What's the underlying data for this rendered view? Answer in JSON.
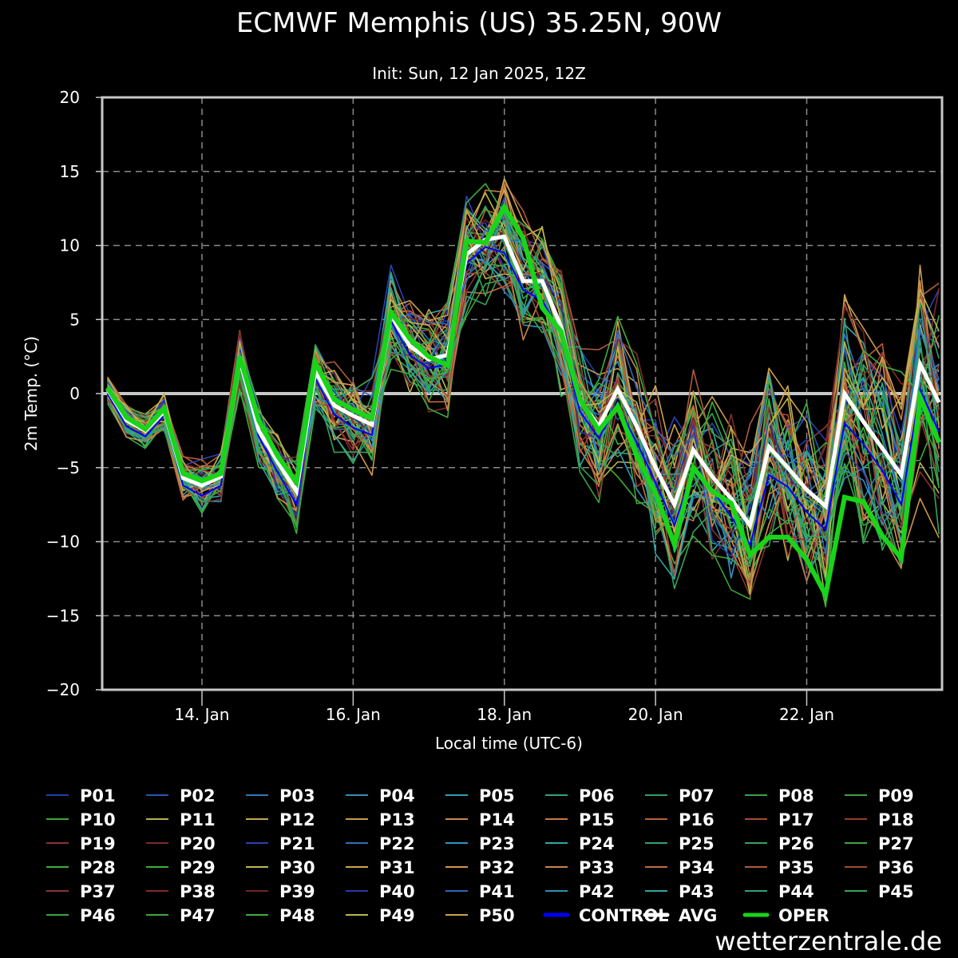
{
  "chart_data": {
    "type": "line",
    "title": "ECMWF Memphis (US) 35.25N, 90W",
    "subtitle": "Init: Sun, 12 Jan 2025, 12Z",
    "xlabel": "Local time (UTC-6)",
    "ylabel": "2m Temp. (°C)",
    "ylim": [
      -20,
      20
    ],
    "yticks": [
      20,
      15,
      10,
      5,
      0,
      -5,
      -10,
      -15,
      -20
    ],
    "ytick_labels": [
      "20",
      "15",
      "10",
      "5",
      "0",
      "−5",
      "−10",
      "−15",
      "−20"
    ],
    "x_unit": "days since 14 Jan 00:00 local",
    "xlim": [
      -1.32,
      9.79
    ],
    "xticks": [
      0,
      2,
      4,
      6,
      8
    ],
    "xtick_labels": [
      "14. Jan",
      "16. Jan",
      "18. Jan",
      "20. Jan",
      "22. Jan"
    ],
    "grid": true,
    "zero_line": true,
    "legend_position": "bottom",
    "x": [
      -1.25,
      -1.0,
      -0.75,
      -0.5,
      -0.25,
      0,
      0.25,
      0.5,
      0.75,
      1.0,
      1.25,
      1.5,
      1.75,
      2.0,
      2.25,
      2.5,
      2.75,
      3.0,
      3.25,
      3.5,
      3.75,
      4.0,
      4.25,
      4.5,
      4.75,
      5.0,
      5.25,
      5.5,
      5.75,
      6.0,
      6.25,
      6.5,
      6.75,
      7.0,
      7.25,
      7.5,
      7.75,
      8.0,
      8.25,
      8.5,
      8.75,
      9.0,
      9.25,
      9.5,
      9.75
    ],
    "series": [
      {
        "name": "AVG",
        "color": "#ffffff",
        "values": [
          0.3,
          -1.8,
          -2.5,
          -1.2,
          -5.7,
          -6.2,
          -5.6,
          2.3,
          -2.5,
          -4.6,
          -6.6,
          1.5,
          -0.8,
          -1.5,
          -2.1,
          5.3,
          3.2,
          2.3,
          2.6,
          9.4,
          10.4,
          10.6,
          7.6,
          7.6,
          4.5,
          -0.5,
          -2.2,
          0.3,
          -2.2,
          -5.0,
          -7.5,
          -3.8,
          -5.6,
          -7.1,
          -8.9,
          -3.6,
          -5.0,
          -6.5,
          -7.6,
          0.0,
          -1.9,
          -3.7,
          -5.5,
          2.0,
          -0.6
        ]
      },
      {
        "name": "OPER",
        "color": "#19d419",
        "values": [
          0.4,
          -1.6,
          -2.4,
          -1.0,
          -5.4,
          -5.9,
          -5.4,
          2.5,
          -1.8,
          -4.2,
          -6.0,
          2.1,
          -0.4,
          -1.1,
          -1.7,
          5.5,
          3.7,
          2.5,
          1.9,
          10.3,
          10.2,
          12.6,
          10.5,
          5.8,
          4.2,
          -0.4,
          -2.5,
          -0.9,
          -4.2,
          -6.7,
          -10.2,
          -5.0,
          -6.6,
          -7.4,
          -10.9,
          -9.7,
          -9.7,
          -11.2,
          -13.6,
          -7.0,
          -7.3,
          -9.6,
          -11.1,
          -0.3,
          -3.3
        ]
      },
      {
        "name": "CONTROL",
        "color": "#0000ff",
        "values": [
          0.0,
          -2.2,
          -2.9,
          -1.5,
          -6.2,
          -6.9,
          -6.2,
          2.0,
          -2.9,
          -5.3,
          -7.5,
          1.0,
          -1.4,
          -2.3,
          -2.8,
          4.9,
          2.6,
          1.7,
          2.0,
          8.8,
          9.9,
          9.5,
          7.0,
          6.3,
          4.0,
          -1.2,
          -3.0,
          -0.8,
          -3.3,
          -6.0,
          -8.9,
          -5.0,
          -6.5,
          -8.3,
          -10.2,
          -5.5,
          -6.3,
          -8.0,
          -9.2,
          -2.0,
          -3.4,
          -5.2,
          -7.5,
          0.3,
          -2.6
        ]
      }
    ],
    "ensemble_members": {
      "count": 50,
      "names": [
        "P01",
        "P02",
        "P03",
        "P04",
        "P05",
        "P06",
        "P07",
        "P08",
        "P09",
        "P10",
        "P11",
        "P12",
        "P13",
        "P14",
        "P15",
        "P16",
        "P17",
        "P18",
        "P19",
        "P20",
        "P21",
        "P22",
        "P23",
        "P24",
        "P25",
        "P26",
        "P27",
        "P28",
        "P29",
        "P30",
        "P31",
        "P32",
        "P33",
        "P34",
        "P35",
        "P36",
        "P37",
        "P38",
        "P39",
        "P40",
        "P41",
        "P42",
        "P43",
        "P44",
        "P45",
        "P46",
        "P47",
        "P48",
        "P49",
        "P50"
      ],
      "colors": [
        "#1f3fa8",
        "#2b55b8",
        "#2f77b5",
        "#3390b8",
        "#2fa3ad",
        "#2ea38a",
        "#2f9f6a",
        "#36a34e",
        "#3aa33a",
        "#3ca83a",
        "#b8b24a",
        "#c5a84d",
        "#c99a4e",
        "#c88a4a",
        "#c77a44",
        "#b8603a",
        "#a84a36",
        "#983a32",
        "#8e3030",
        "#7a2a2a",
        "#2a40b0",
        "#2f6fbe",
        "#2f95c0",
        "#2ea8a8",
        "#2ea27a",
        "#34a45a",
        "#3aa842",
        "#3fac3c",
        "#3cb03c",
        "#c2b84c",
        "#cca44c",
        "#d0944a",
        "#c8844a",
        "#c06e42",
        "#b05a3a",
        "#a0483a",
        "#8c3232",
        "#7e2c2c",
        "#6e2626",
        "#2838a8",
        "#2e66b8",
        "#2f90b4",
        "#2ea6a0",
        "#30a07a",
        "#34a456",
        "#38a446",
        "#3aa83c",
        "#3eae3e",
        "#bcb64c",
        "#c8a44c"
      ],
      "spread_degC_approx": {
        "min_observed": -17.2,
        "max_observed": 17.5
      }
    },
    "legend": {
      "entries_order": "P01..P50, CONTROL, AVG, OPER",
      "columns": 9
    }
  },
  "credit": "wetterzentrale.de"
}
